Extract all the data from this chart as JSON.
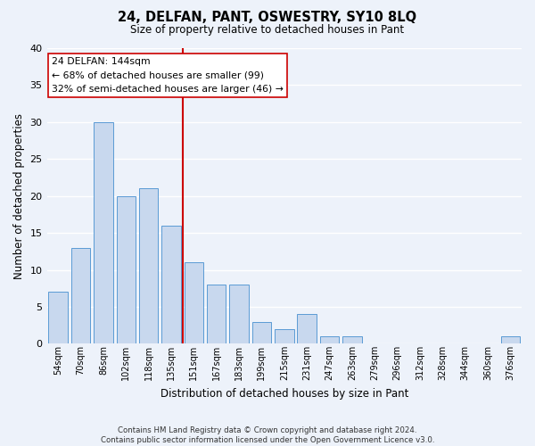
{
  "title": "24, DELFAN, PANT, OSWESTRY, SY10 8LQ",
  "subtitle": "Size of property relative to detached houses in Pant",
  "xlabel": "Distribution of detached houses by size in Pant",
  "ylabel": "Number of detached properties",
  "bar_labels": [
    "54sqm",
    "70sqm",
    "86sqm",
    "102sqm",
    "118sqm",
    "135sqm",
    "151sqm",
    "167sqm",
    "183sqm",
    "199sqm",
    "215sqm",
    "231sqm",
    "247sqm",
    "263sqm",
    "279sqm",
    "296sqm",
    "312sqm",
    "328sqm",
    "344sqm",
    "360sqm",
    "376sqm"
  ],
  "bar_values": [
    7,
    13,
    30,
    20,
    21,
    16,
    11,
    8,
    8,
    3,
    2,
    4,
    1,
    1,
    0,
    0,
    0,
    0,
    0,
    0,
    1
  ],
  "bar_color": "#c8d8ee",
  "bar_edge_color": "#5b9bd5",
  "vline_x": 5.5,
  "vline_color": "#cc0000",
  "annotation_title": "24 DELFAN: 144sqm",
  "annotation_line1": "← 68% of detached houses are smaller (99)",
  "annotation_line2": "32% of semi-detached houses are larger (46) →",
  "annotation_box_facecolor": "#ffffff",
  "annotation_box_edgecolor": "#cc0000",
  "ylim": [
    0,
    40
  ],
  "yticks": [
    0,
    5,
    10,
    15,
    20,
    25,
    30,
    35,
    40
  ],
  "footnote": "Contains HM Land Registry data © Crown copyright and database right 2024.\nContains public sector information licensed under the Open Government Licence v3.0.",
  "bg_color": "#edf2fa",
  "grid_color": "#ffffff"
}
